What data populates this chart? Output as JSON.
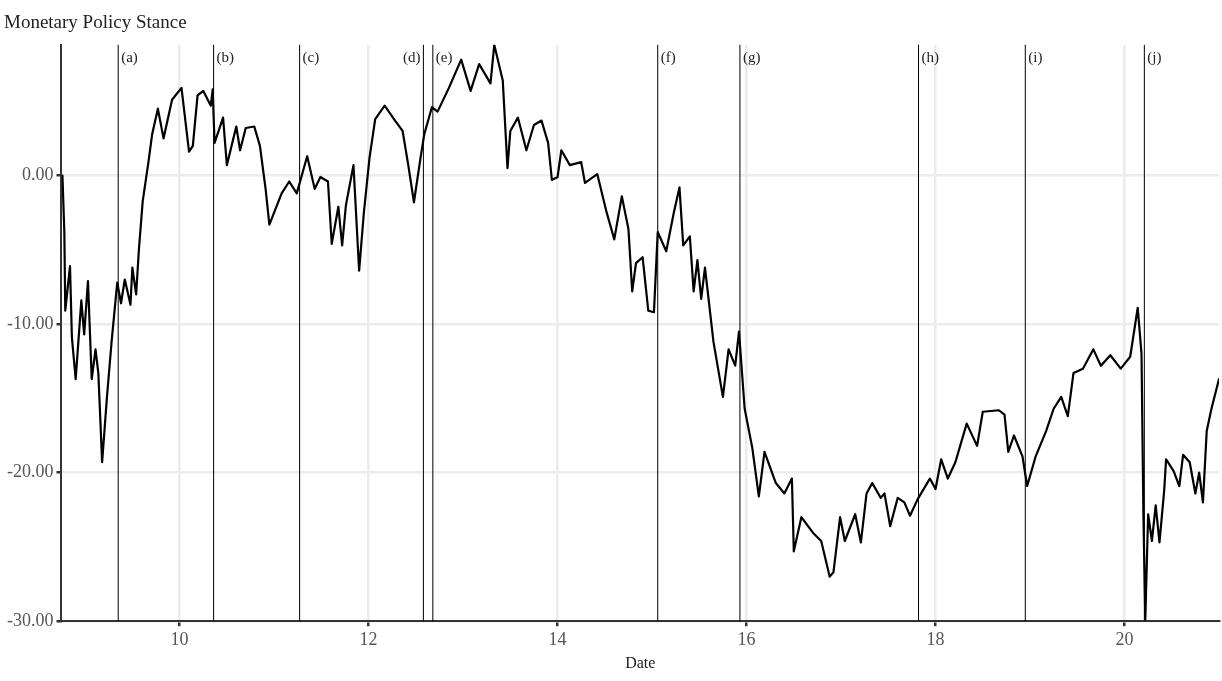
{
  "chart_data": {
    "type": "line",
    "title": "Monetary Policy Stance",
    "xlabel": "Date",
    "xlim": [
      8.75,
      21
    ],
    "xticks": [
      10,
      12,
      14,
      16,
      18,
      20
    ],
    "ylim": [
      -30,
      8.8
    ],
    "yticks": [
      {
        "value": -30,
        "label": "-30.00"
      },
      {
        "value": -20,
        "label": "-20.00"
      },
      {
        "value": -10,
        "label": "-10.00"
      },
      {
        "value": 0,
        "label": "0.00"
      }
    ],
    "grid": true,
    "legend": false,
    "line_style": "solid",
    "marker": "none",
    "series": [
      {
        "color": "#000000",
        "x": [
          8.76,
          8.78,
          8.79,
          8.84,
          8.86,
          8.9,
          8.96,
          8.99,
          9.03,
          9.07,
          9.11,
          9.14,
          9.18,
          9.23,
          9.28,
          9.34,
          9.38,
          9.42,
          9.48,
          9.5,
          9.54,
          9.57,
          9.61,
          9.67,
          9.71,
          9.77,
          9.83,
          9.92,
          10.02,
          10.1,
          10.14,
          10.19,
          10.25,
          10.33,
          10.35,
          10.37,
          10.46,
          10.5,
          10.6,
          10.64,
          10.7,
          10.79,
          10.85,
          10.91,
          10.95,
          11.08,
          11.16,
          11.24,
          11.35,
          11.43,
          11.49,
          11.57,
          11.61,
          11.68,
          11.72,
          11.76,
          11.84,
          11.9,
          11.95,
          12.01,
          12.07,
          12.17,
          12.28,
          12.36,
          12.42,
          12.48,
          12.55,
          12.59,
          12.67,
          12.73,
          12.85,
          12.98,
          13.08,
          13.17,
          13.29,
          13.33,
          13.42,
          13.47,
          13.5,
          13.58,
          13.67,
          13.75,
          13.83,
          13.9,
          13.94,
          14.0,
          14.04,
          14.13,
          14.25,
          14.29,
          14.42,
          14.52,
          14.6,
          14.68,
          14.75,
          14.79,
          14.83,
          14.9,
          14.96,
          15.02,
          15.06,
          15.15,
          15.23,
          15.29,
          15.33,
          15.4,
          15.44,
          15.48,
          15.52,
          15.56,
          15.65,
          15.75,
          15.81,
          15.88,
          15.92,
          15.98,
          16.06,
          16.13,
          16.19,
          16.31,
          16.4,
          16.48,
          16.5,
          16.58,
          16.71,
          16.79,
          16.88,
          16.92,
          16.99,
          17.04,
          17.15,
          17.21,
          17.27,
          17.33,
          17.42,
          17.46,
          17.52,
          17.6,
          17.67,
          17.73,
          17.81,
          17.94,
          18.0,
          18.06,
          18.13,
          18.21,
          18.27,
          18.33,
          18.44,
          18.5,
          18.67,
          18.73,
          18.77,
          18.83,
          18.92,
          18.97,
          19.06,
          19.17,
          19.25,
          19.33,
          19.4,
          19.46,
          19.56,
          19.67,
          19.75,
          19.85,
          19.96,
          20.06,
          20.14,
          20.18,
          20.2,
          20.22,
          20.25,
          20.29,
          20.33,
          20.37,
          20.42,
          20.44,
          20.52,
          20.58,
          20.62,
          20.69,
          20.75,
          20.79,
          20.83,
          20.87,
          20.92,
          21.0
        ],
        "values": [
          0,
          -3.8,
          -9.1,
          -6.1,
          -10.9,
          -13.7,
          -8.4,
          -10.7,
          -7.1,
          -13.7,
          -11.7,
          -13.3,
          -19.3,
          -15,
          -11.2,
          -7.2,
          -8.6,
          -7,
          -8.7,
          -6.2,
          -8,
          -4.9,
          -1.7,
          0.9,
          2.8,
          4.5,
          2.5,
          5.1,
          5.9,
          1.6,
          2,
          5.4,
          5.7,
          4.7,
          5.8,
          2.2,
          3.9,
          0.7,
          3.3,
          1.7,
          3.2,
          3.3,
          2,
          -0.9,
          -3.3,
          -1.2,
          -0.4,
          -1.2,
          1.3,
          -0.9,
          -0.1,
          -0.4,
          -4.6,
          -2.1,
          -4.7,
          -2,
          0.7,
          -6.4,
          -2.5,
          1.2,
          3.8,
          4.7,
          3.7,
          3,
          0.7,
          -1.8,
          1.2,
          2.8,
          4.6,
          4.3,
          5.9,
          7.8,
          5.7,
          7.5,
          6.2,
          8.8,
          6.4,
          0.5,
          3,
          3.9,
          1.7,
          3.4,
          3.7,
          2.2,
          -0.3,
          -0.1,
          1.7,
          0.7,
          0.9,
          -0.5,
          0.1,
          -2.5,
          -4.3,
          -1.4,
          -3.6,
          -7.8,
          -5.9,
          -5.5,
          -9.1,
          -9.2,
          -3.8,
          -5.1,
          -2.5,
          -0.8,
          -4.7,
          -4.1,
          -7.8,
          -5.7,
          -8.3,
          -6.2,
          -11.2,
          -14.9,
          -11.7,
          -12.8,
          -10.5,
          -15.7,
          -18.3,
          -21.6,
          -18.6,
          -20.7,
          -21.4,
          -20.4,
          -25.3,
          -23,
          -24.1,
          -24.6,
          -27,
          -26.7,
          -23,
          -24.6,
          -22.8,
          -24.7,
          -21.4,
          -20.7,
          -21.7,
          -21.4,
          -23.6,
          -21.7,
          -22,
          -22.9,
          -21.8,
          -20.4,
          -21.1,
          -19.1,
          -20.4,
          -19.3,
          -18,
          -16.7,
          -18.2,
          -15.9,
          -15.8,
          -16.1,
          -18.6,
          -17.5,
          -18.9,
          -20.9,
          -18.9,
          -17.2,
          -15.7,
          -14.9,
          -16.2,
          -13.3,
          -13,
          -11.7,
          -12.8,
          -12.1,
          -13,
          -12.2,
          -8.9,
          -12,
          -22.8,
          -29.9,
          -22.8,
          -24.6,
          -22.2,
          -24.7,
          -21.2,
          -19.1,
          -19.9,
          -20.9,
          -18.8,
          -19.3,
          -21.4,
          -20,
          -22,
          -17.2,
          -15.7,
          -13.7
        ]
      }
    ],
    "ref_lines": [
      {
        "axis": "x",
        "value": 9.35,
        "label": "(a)",
        "color": "#000000"
      },
      {
        "axis": "x",
        "value": 10.36,
        "label": "(b)",
        "color": "#000000"
      },
      {
        "axis": "x",
        "value": 11.27,
        "label": "(c)",
        "color": "#000000"
      },
      {
        "axis": "x",
        "value": 12.58,
        "label": "(d)",
        "color": "#000000"
      },
      {
        "axis": "x",
        "value": 12.68,
        "label": "(e)",
        "color": "#000000"
      },
      {
        "axis": "x",
        "value": 15.06,
        "label": "(f)",
        "color": "#000000"
      },
      {
        "axis": "x",
        "value": 15.93,
        "label": "(g)",
        "color": "#000000"
      },
      {
        "axis": "x",
        "value": 17.82,
        "label": "(h)",
        "color": "#000000"
      },
      {
        "axis": "x",
        "value": 18.95,
        "label": "(i)",
        "color": "#000000"
      },
      {
        "axis": "x",
        "value": 20.21,
        "label": "(j)",
        "color": "#000000"
      }
    ]
  }
}
